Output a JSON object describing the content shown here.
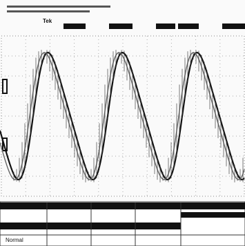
{
  "header": {
    "brand": "Tek"
  },
  "menu": {
    "mode": "Normal"
  }
}
